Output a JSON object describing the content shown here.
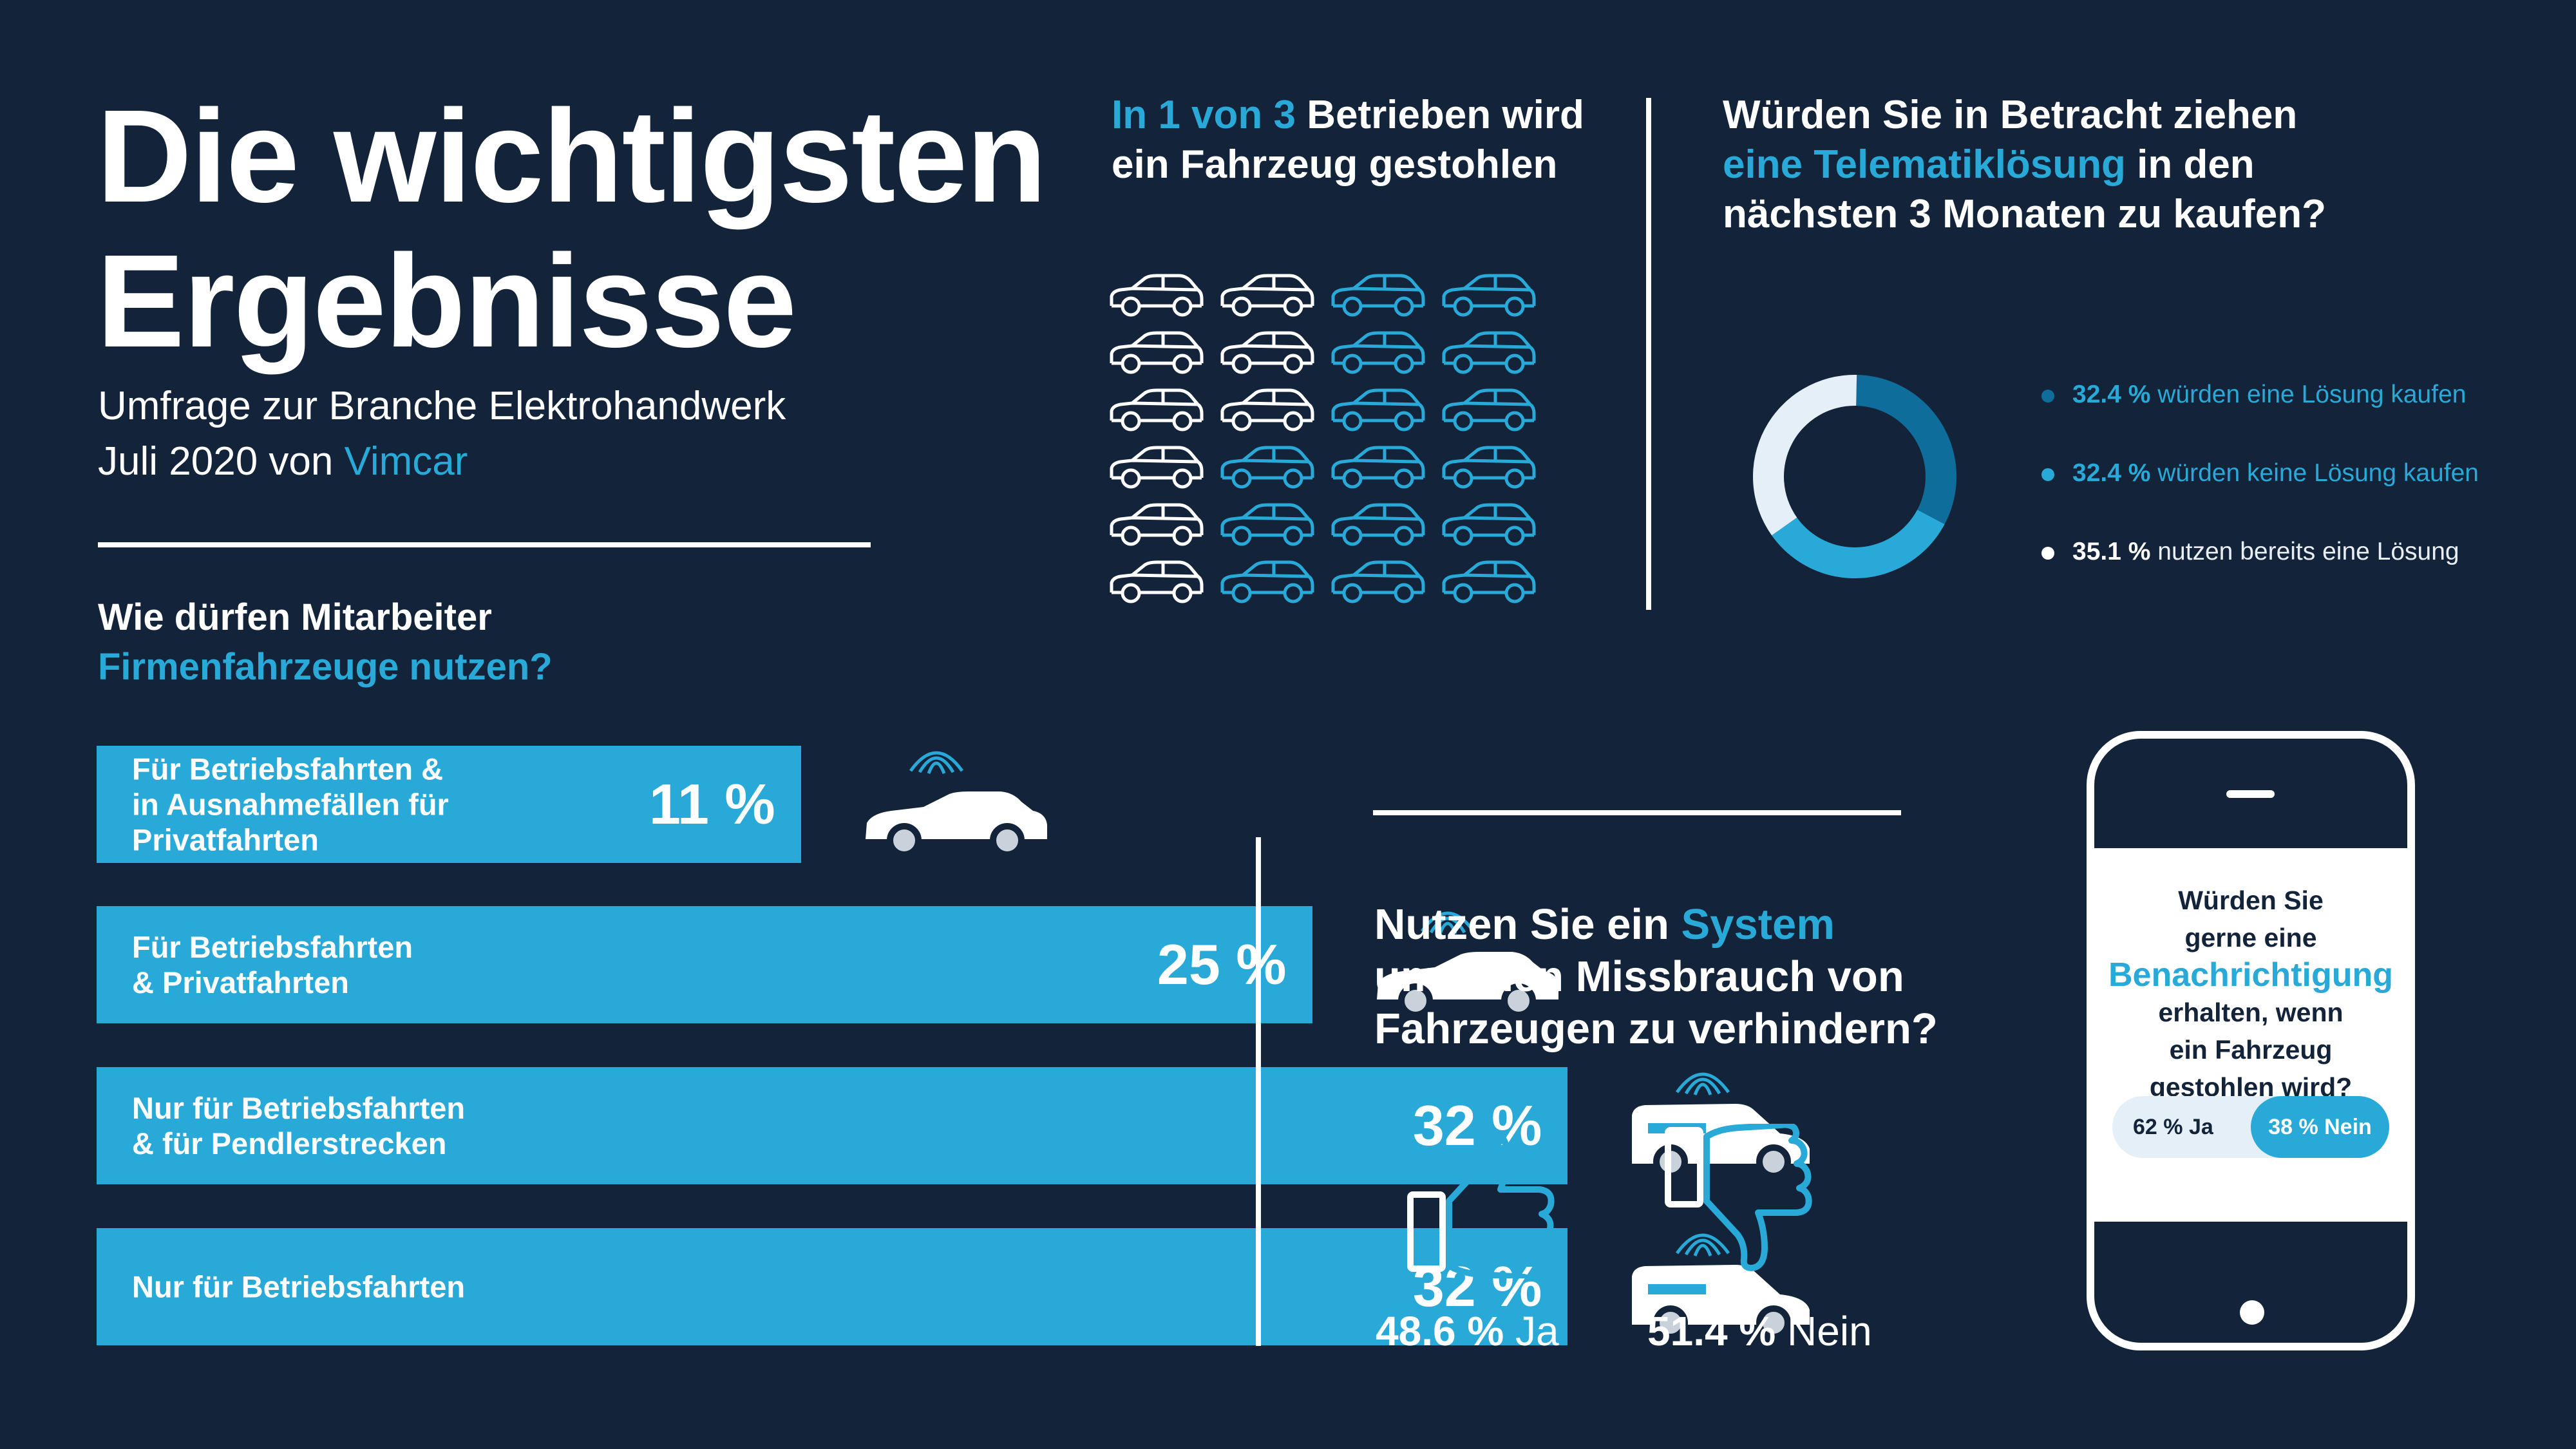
{
  "colors": {
    "background": "#13243a",
    "accent": "#29a9d8",
    "white": "#ffffff",
    "dark_blue": "#0f6d9c",
    "light_blue": "#e5eff8"
  },
  "header": {
    "title": "Die wichtigsten Ergebnisse",
    "subtitle_line1": "Umfrage zur Branche Elektrohandwerk",
    "subtitle_line2_prefix": "Juli 2020 von ",
    "subtitle_brand": "Vimcar"
  },
  "usage": {
    "question_line1": "Wie dürfen Mitarbeiter",
    "question_line2": "Firmenfahrzeuge nutzen?"
  },
  "theft": {
    "title_highlight": "In 1 von 3",
    "title_rest": " Betrieben wird",
    "title_line2": "ein Fahrzeug gestohlen"
  },
  "telematics": {
    "title_line1": "Würden Sie in Betracht ziehen",
    "title_highlight": "eine Telematiklösung",
    "title_line2_rest": " in den",
    "title_line3": "nächsten 3 Monaten zu kaufen?"
  },
  "misuse": {
    "title_line1_prefix": "Nutzen Sie ein ",
    "title_highlight": "System",
    "title_line2": "um einen Missbrauch von",
    "title_line3": "Fahrzeugen zu verhindern?",
    "yes_icon": "thumbs-up-icon",
    "no_icon": "thumbs-down-icon"
  },
  "phone": {
    "line1": "Würden Sie",
    "line2": "gerne eine",
    "highlight": "Benachrichtigung",
    "line3": "erhalten, wenn",
    "line4": "ein Fahrzeug",
    "line5": "gestohlen wird?"
  },
  "chart_data": [
    {
      "type": "bar",
      "orientation": "horizontal",
      "categories": [
        "Für Betriebsfahrten & in Ausnahmefällen für Privatfahrten",
        "Für Betriebsfahrten & Privatfahrten",
        "Nur für Betriebsfahrten & für Pendlerstrecken",
        "Nur für Betriebsfahrten"
      ],
      "category_lines": [
        [
          "Für Betriebsfahrten &",
          "in Ausnahmefällen für",
          "Privatfahrten"
        ],
        [
          "Für Betriebsfahrten",
          "& Privatfahrten"
        ],
        [
          "Nur für Betriebsfahrten",
          "& für Pendlerstrecken"
        ],
        [
          "Nur für Betriebsfahrten"
        ]
      ],
      "values": [
        11,
        25,
        32,
        32
      ],
      "labels": [
        "11 %",
        "25 %",
        "32 %",
        "32 %"
      ]
    },
    {
      "type": "pictogram",
      "total": 24,
      "highlighted": 8,
      "ratio_text": "1 von 3",
      "icon": "car-icon"
    },
    {
      "type": "pie",
      "style": "donut",
      "slices": [
        {
          "value": 32.4,
          "value_label": "32.4 %",
          "label": "würden eine Lösung kaufen",
          "color": "#0f6d9c"
        },
        {
          "value": 32.4,
          "value_label": "32.4 %",
          "label": "würden keine Lösung kaufen",
          "color": "#29a9d8"
        },
        {
          "value": 35.1,
          "value_label": "35.1 %",
          "label": "nutzen bereits eine Lösung",
          "color": "#e5eff8"
        }
      ]
    },
    {
      "type": "bar",
      "categories": [
        "Ja",
        "Nein"
      ],
      "values": [
        48.6,
        51.4
      ],
      "labels": [
        "48.6 %",
        "51.4 %"
      ]
    },
    {
      "type": "bar",
      "style": "stacked-toggle",
      "categories": [
        "Ja",
        "Nein"
      ],
      "values": [
        62,
        38
      ],
      "labels": [
        "62 %",
        "38 %"
      ]
    }
  ]
}
